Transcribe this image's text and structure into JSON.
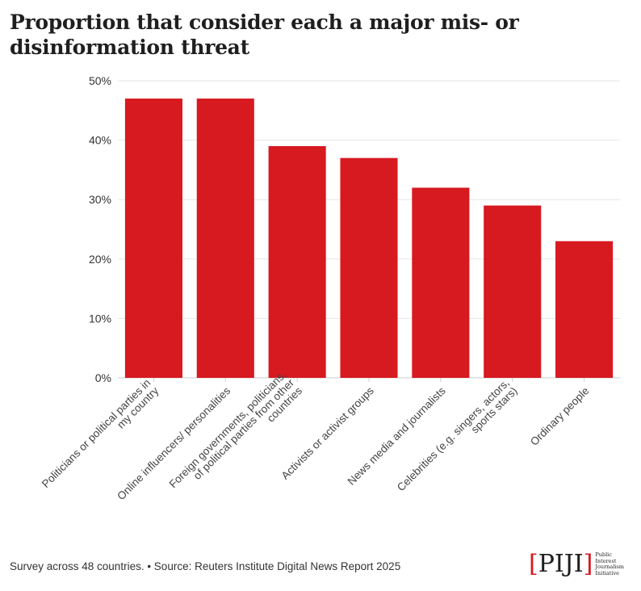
{
  "title": "Proportion that consider each a major mis- or disinformation threat",
  "footer": "Survey across 48 countries. • Source: Reuters Institute Digital News Report 2025",
  "logo": {
    "text": "[PIJI]",
    "subtitle": "Public Interest Journalism Initiative"
  },
  "colors": {
    "bar": "#d71920",
    "grid": "#e6e6e6",
    "axis": "#cccccc"
  },
  "chart_data": {
    "type": "bar",
    "title": "Proportion that consider each a major mis- or disinformation threat",
    "xlabel": "",
    "ylabel": "",
    "ylim": [
      0,
      50
    ],
    "yticks": [
      "0%",
      "10%",
      "20%",
      "30%",
      "40%",
      "50%"
    ],
    "grid": true,
    "categories": [
      "Politicians or political parties in my country",
      "Online influencers/ personalities",
      "Foreign governments, politicians, of political parties from other countries",
      "Activists or activist groups",
      "News media and journalists",
      "Celebrities (e.g. singers, actors, sports stars)",
      "Ordinary people"
    ],
    "category_lines": [
      [
        "Politicians or political parties in",
        "my country"
      ],
      [
        "Online influencers/ personalities"
      ],
      [
        "Foreign governments, politicians,",
        "of political parties from other",
        "countries"
      ],
      [
        "Activists or activist groups"
      ],
      [
        "News media and journalists"
      ],
      [
        "Celebrities (e.g. singers, actors,",
        "sports stars)"
      ],
      [
        "Ordinary people"
      ]
    ],
    "values": [
      47,
      47,
      39,
      37,
      32,
      29,
      23
    ]
  }
}
